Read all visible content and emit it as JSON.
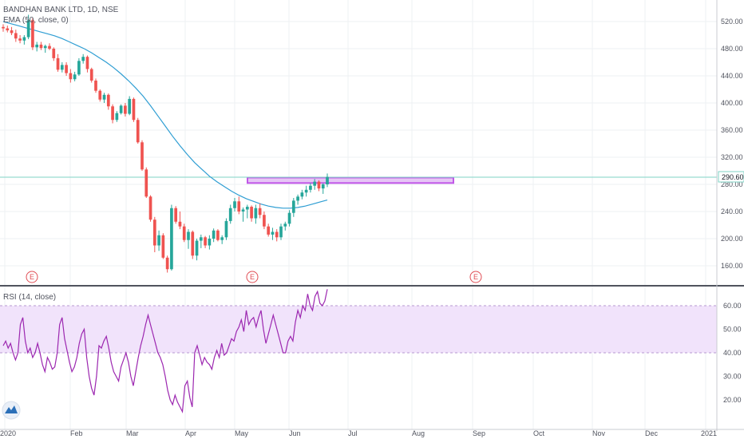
{
  "symbol_title": "BANDHAN BANK LTD, 1D, NSE",
  "ema_label": "EMA (50, close, 0)",
  "rsi_label": "RSI (14, close)",
  "last_price": "290.60",
  "earnings_marker": "E",
  "colors": {
    "up": "#26a69a",
    "down": "#ef5350",
    "ema": "#2f9ed3",
    "rsi_line": "#9c27b0",
    "rsi_band": "#f1e3fb",
    "zone_fill": "#e6c6f5",
    "zone_stroke": "#c158e8",
    "last_price_line": "#7fd3c6"
  },
  "price_axis": [
    "520.00",
    "480.00",
    "440.00",
    "400.00",
    "360.00",
    "320.00",
    "280.00",
    "240.00",
    "200.00",
    "160.00"
  ],
  "rsi_axis": [
    "60.00",
    "50.00",
    "40.00",
    "30.00",
    "20.00"
  ],
  "time_axis": [
    "2020",
    "Feb",
    "Mar",
    "Apr",
    "May",
    "Jun",
    "Jul",
    "Aug",
    "Sep",
    "Oct",
    "Nov",
    "Dec",
    "2021"
  ],
  "chart_data": [
    {
      "type": "candlestick",
      "title": "BANDHAN BANK LTD, 1D, NSE",
      "ylim": [
        140,
        540
      ],
      "price_ticks": [
        520,
        480,
        440,
        400,
        360,
        320,
        280,
        240,
        200,
        160
      ],
      "last_price": 290.6,
      "resistance_zone": [
        282,
        290
      ],
      "ema_label": "EMA (50, close, 0)",
      "ohlc": [
        [
          512,
          516,
          505,
          510
        ],
        [
          510,
          514,
          504,
          507
        ],
        [
          507,
          512,
          500,
          503
        ],
        [
          503,
          508,
          490,
          495
        ],
        [
          495,
          500,
          488,
          492
        ],
        [
          492,
          500,
          486,
          497
        ],
        [
          497,
          530,
          494,
          522
        ],
        [
          522,
          525,
          478,
          482
        ],
        [
          482,
          490,
          476,
          486
        ],
        [
          486,
          490,
          478,
          481
        ],
        [
          481,
          486,
          474,
          484
        ],
        [
          484,
          488,
          478,
          480
        ],
        [
          480,
          482,
          462,
          466
        ],
        [
          466,
          472,
          446,
          449
        ],
        [
          449,
          460,
          445,
          456
        ],
        [
          456,
          460,
          440,
          444
        ],
        [
          444,
          450,
          430,
          435
        ],
        [
          435,
          446,
          432,
          442
        ],
        [
          442,
          466,
          440,
          462
        ],
        [
          462,
          472,
          458,
          468
        ],
        [
          468,
          470,
          445,
          450
        ],
        [
          450,
          452,
          430,
          433
        ],
        [
          433,
          436,
          415,
          418
        ],
        [
          418,
          420,
          402,
          405
        ],
        [
          405,
          415,
          400,
          412
        ],
        [
          412,
          414,
          390,
          395
        ],
        [
          395,
          398,
          370,
          375
        ],
        [
          375,
          388,
          372,
          385
        ],
        [
          385,
          398,
          383,
          396
        ],
        [
          396,
          400,
          380,
          384
        ],
        [
          384,
          410,
          382,
          406
        ],
        [
          406,
          408,
          372,
          375
        ],
        [
          375,
          378,
          340,
          342
        ],
        [
          342,
          345,
          300,
          302
        ],
        [
          302,
          305,
          260,
          262
        ],
        [
          262,
          264,
          225,
          228
        ],
        [
          228,
          232,
          180,
          190
        ],
        [
          190,
          212,
          182,
          205
        ],
        [
          205,
          208,
          170,
          172
        ],
        [
          172,
          175,
          150,
          155
        ],
        [
          155,
          250,
          153,
          245
        ],
        [
          245,
          248,
          222,
          225
        ],
        [
          225,
          240,
          214,
          218
        ],
        [
          218,
          222,
          195,
          198
        ],
        [
          198,
          214,
          185,
          210
        ],
        [
          210,
          212,
          170,
          175
        ],
        [
          175,
          200,
          168,
          197
        ],
        [
          197,
          206,
          186,
          202
        ],
        [
          202,
          204,
          186,
          190
        ],
        [
          190,
          205,
          184,
          200
        ],
        [
          200,
          215,
          195,
          212
        ],
        [
          212,
          214,
          196,
          198
        ],
        [
          198,
          205,
          192,
          202
        ],
        [
          202,
          230,
          198,
          226
        ],
        [
          226,
          250,
          222,
          245
        ],
        [
          245,
          260,
          240,
          255
        ],
        [
          255,
          262,
          236,
          240
        ],
        [
          240,
          246,
          225,
          243
        ],
        [
          243,
          250,
          230,
          247
        ],
        [
          247,
          249,
          225,
          230
        ],
        [
          230,
          250,
          222,
          245
        ],
        [
          245,
          252,
          230,
          235
        ],
        [
          235,
          240,
          214,
          218
        ],
        [
          218,
          222,
          203,
          206
        ],
        [
          206,
          216,
          198,
          210
        ],
        [
          210,
          214,
          196,
          202
        ],
        [
          202,
          222,
          198,
          218
        ],
        [
          218,
          225,
          212,
          222
        ],
        [
          222,
          242,
          218,
          238
        ],
        [
          238,
          260,
          232,
          256
        ],
        [
          256,
          265,
          250,
          262
        ],
        [
          262,
          272,
          258,
          268
        ],
        [
          268,
          278,
          262,
          272
        ],
        [
          272,
          282,
          268,
          278
        ],
        [
          278,
          288,
          272,
          284
        ],
        [
          284,
          286,
          270,
          274
        ],
        [
          274,
          282,
          266,
          280
        ],
        [
          280,
          296,
          276,
          291
        ]
      ],
      "ema": [
        520,
        517,
        514,
        511,
        508,
        505,
        502,
        499,
        495,
        490,
        485,
        480,
        474,
        467,
        460,
        452,
        443,
        433,
        422,
        410,
        396,
        381,
        366,
        351,
        337,
        324,
        312,
        302,
        292,
        284,
        277,
        270,
        264,
        259,
        255,
        251,
        248,
        246,
        245,
        245,
        246,
        248,
        251,
        254,
        257
      ],
      "rsi_title": "RSI (14, close)",
      "rsi_band": [
        40,
        60
      ],
      "rsi_ticks": [
        60,
        50,
        40,
        30,
        20
      ],
      "rsi": [
        43,
        45,
        42,
        44,
        40,
        37,
        40,
        52,
        55,
        45,
        40,
        42,
        38,
        40,
        44,
        40,
        35,
        32,
        38,
        36,
        33,
        34,
        40,
        52,
        55,
        46,
        41,
        36,
        32,
        34,
        38,
        44,
        48,
        50,
        38,
        30,
        25,
        22,
        30,
        43,
        42,
        45,
        47,
        42,
        36,
        32,
        30,
        28,
        34,
        37,
        40,
        36,
        30,
        26,
        32,
        38,
        43,
        47,
        52,
        56,
        52,
        48,
        44,
        40,
        38,
        35,
        30,
        24,
        20,
        18,
        22,
        19,
        17,
        15,
        26,
        28,
        21,
        17,
        40,
        43,
        39,
        35,
        38,
        36,
        35,
        33,
        38,
        41,
        38,
        44,
        39,
        40,
        43,
        46,
        45,
        49,
        51,
        54,
        49,
        58,
        52,
        54,
        55,
        51,
        55,
        58,
        50,
        44,
        48,
        52,
        56,
        52,
        48,
        44,
        40,
        40,
        45,
        47,
        45,
        53,
        58,
        55,
        60,
        58,
        65,
        60,
        58,
        64,
        66,
        61,
        60,
        62,
        67
      ]
    }
  ]
}
